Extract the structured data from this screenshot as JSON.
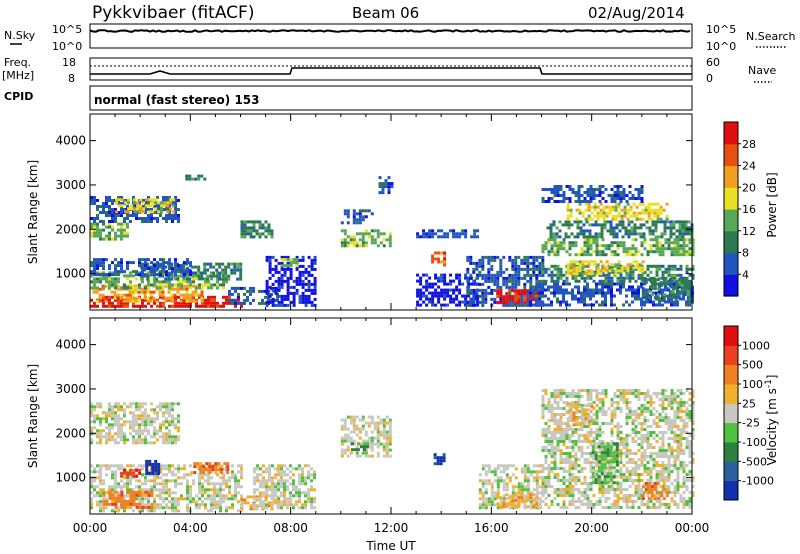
{
  "header": {
    "station": "Pykkvibaer (fitACF)",
    "beam": "Beam 06",
    "date": "02/Aug/2014"
  },
  "strips": {
    "nsky_label": "N.Sky",
    "nsearch_label": "N.Search",
    "freq_label": "Freq.",
    "freq_unit": "[MHz]",
    "nave_label": "Nave",
    "cpid_label": "CPID",
    "nsky_ticks": [
      "10^5",
      "10^0"
    ],
    "nsearch_ticks": [
      "10^5",
      "10^0"
    ],
    "freq_ticks": [
      "18",
      "8"
    ],
    "nave_ticks": [
      "60",
      "0"
    ],
    "cpid_text": "normal (fast stereo) 153"
  },
  "chart_data": [
    {
      "type": "heatmap",
      "name": "power",
      "ylabel": "Slant Range [km]",
      "xlabel": "",
      "yticks": [
        1000,
        2000,
        3000,
        4000
      ],
      "ylim": [
        180,
        4600
      ],
      "xlim": [
        0,
        24
      ],
      "colorbar": {
        "label": "Power [dB]",
        "ticks": [
          "4",
          "8",
          "12",
          "16",
          "20",
          "24",
          "28"
        ],
        "colors": [
          "#1010e0",
          "#2255c0",
          "#2e7a50",
          "#58a858",
          "#e8e020",
          "#f0a020",
          "#e85010",
          "#e01010"
        ]
      },
      "regions": [
        {
          "t0": 0.0,
          "t1": 6.0,
          "r0": 250,
          "r1": 500,
          "level": 7
        },
        {
          "t0": 0.1,
          "t1": 4.5,
          "r0": 400,
          "r1": 750,
          "level": 5
        },
        {
          "t0": 0.0,
          "t1": 5.5,
          "r0": 700,
          "r1": 1050,
          "level": 3
        },
        {
          "t0": 2.0,
          "t1": 6.0,
          "r0": 850,
          "r1": 1250,
          "level": 2
        },
        {
          "t0": 0.0,
          "t1": 4.0,
          "r0": 1000,
          "r1": 1350,
          "level": 1
        },
        {
          "t0": 0.0,
          "t1": 1.5,
          "r0": 1800,
          "r1": 2150,
          "level": 3
        },
        {
          "t0": 0.0,
          "t1": 3.5,
          "r0": 2200,
          "r1": 2750,
          "level": 1
        },
        {
          "t0": 1.0,
          "t1": 3.3,
          "r0": 2400,
          "r1": 2700,
          "level": 4
        },
        {
          "t0": 3.8,
          "t1": 4.6,
          "r0": 3100,
          "r1": 3300,
          "level": 2
        },
        {
          "t0": 5.5,
          "t1": 7.5,
          "r0": 300,
          "r1": 700,
          "level": 1
        },
        {
          "t0": 6.0,
          "t1": 7.2,
          "r0": 1800,
          "r1": 2200,
          "level": 2
        },
        {
          "t0": 7.0,
          "t1": 9.0,
          "r0": 300,
          "r1": 1400,
          "level": 0
        },
        {
          "t0": 7.6,
          "t1": 8.2,
          "r0": 1200,
          "r1": 1350,
          "level": 3
        },
        {
          "t0": 10.0,
          "t1": 12.0,
          "r0": 1600,
          "r1": 2000,
          "level": 3
        },
        {
          "t0": 10.0,
          "t1": 11.3,
          "r0": 2150,
          "r1": 2450,
          "level": 1
        },
        {
          "t0": 11.5,
          "t1": 12.0,
          "r0": 2800,
          "r1": 3200,
          "level": 1
        },
        {
          "t0": 13.0,
          "t1": 15.5,
          "r0": 1800,
          "r1": 2000,
          "level": 1
        },
        {
          "t0": 13.6,
          "t1": 14.1,
          "r0": 1200,
          "r1": 1500,
          "level": 6
        },
        {
          "t0": 13.0,
          "t1": 15.5,
          "r0": 300,
          "r1": 1000,
          "level": 0
        },
        {
          "t0": 15.0,
          "t1": 18.0,
          "r0": 300,
          "r1": 1400,
          "level": 1
        },
        {
          "t0": 16.2,
          "t1": 17.8,
          "r0": 350,
          "r1": 650,
          "level": 7
        },
        {
          "t0": 17.5,
          "t1": 24.0,
          "r0": 300,
          "r1": 800,
          "level": 1
        },
        {
          "t0": 18.0,
          "t1": 24.0,
          "r0": 800,
          "r1": 1200,
          "level": 2
        },
        {
          "t0": 19.0,
          "t1": 22.0,
          "r0": 1000,
          "r1": 1300,
          "level": 4
        },
        {
          "t0": 18.0,
          "t1": 24.0,
          "r0": 1400,
          "r1": 1800,
          "level": 3
        },
        {
          "t0": 18.2,
          "t1": 24.0,
          "r0": 1800,
          "r1": 2200,
          "level": 2
        },
        {
          "t0": 19.0,
          "t1": 23.0,
          "r0": 2200,
          "r1": 2600,
          "level": 4
        },
        {
          "t0": 18.0,
          "t1": 22.0,
          "r0": 2600,
          "r1": 3000,
          "level": 1
        },
        {
          "t0": 22.0,
          "t1": 24.0,
          "r0": 400,
          "r1": 900,
          "level": 2
        }
      ]
    },
    {
      "type": "heatmap",
      "name": "velocity",
      "ylabel": "Slant Range [km]",
      "xlabel": "Time UT",
      "xticks": [
        "00:00",
        "04:00",
        "08:00",
        "12:00",
        "16:00",
        "20:00",
        "00:00"
      ],
      "yticks": [
        1000,
        2000,
        3000,
        4000
      ],
      "ylim": [
        180,
        4600
      ],
      "xlim": [
        0,
        24
      ],
      "colorbar": {
        "label": "Velocity [m s^-1]",
        "ticks": [
          "1000",
          "500",
          "100",
          "25",
          "-25",
          "-100",
          "-500",
          "-1000"
        ],
        "colors": [
          "#1030b0",
          "#2a5fa0",
          "#2d8040",
          "#50c040",
          "#c8c8c0",
          "#f0b030",
          "#f08020",
          "#e84020",
          "#e01010"
        ]
      },
      "regions": [
        {
          "t0": 0.0,
          "t1": 6.0,
          "r0": 250,
          "r1": 1300,
          "level": 4
        },
        {
          "t0": 0.5,
          "t1": 2.5,
          "r0": 300,
          "r1": 700,
          "level": 6
        },
        {
          "t0": 4.0,
          "t1": 5.5,
          "r0": 1100,
          "r1": 1350,
          "level": 6
        },
        {
          "t0": 1.2,
          "t1": 2.0,
          "r0": 1000,
          "r1": 1200,
          "level": 7
        },
        {
          "t0": 0.0,
          "t1": 3.5,
          "r0": 1800,
          "r1": 2700,
          "level": 4
        },
        {
          "t0": 2.2,
          "t1": 2.7,
          "r0": 1100,
          "r1": 1400,
          "level": 0
        },
        {
          "t0": 6.0,
          "t1": 7.5,
          "r0": 300,
          "r1": 600,
          "level": 5
        },
        {
          "t0": 6.5,
          "t1": 9.0,
          "r0": 300,
          "r1": 1300,
          "level": 4
        },
        {
          "t0": 10.0,
          "t1": 12.0,
          "r0": 1500,
          "r1": 2400,
          "level": 4
        },
        {
          "t0": 10.4,
          "t1": 11.0,
          "r0": 1600,
          "r1": 1800,
          "level": 2
        },
        {
          "t0": 13.7,
          "t1": 14.1,
          "r0": 1300,
          "r1": 1550,
          "level": 0
        },
        {
          "t0": 15.5,
          "t1": 18.0,
          "r0": 300,
          "r1": 1300,
          "level": 4
        },
        {
          "t0": 16.2,
          "t1": 17.8,
          "r0": 350,
          "r1": 650,
          "level": 5
        },
        {
          "t0": 18.0,
          "t1": 24.0,
          "r0": 300,
          "r1": 3000,
          "level": 4
        },
        {
          "t0": 19.0,
          "t1": 20.0,
          "r0": 2200,
          "r1": 2700,
          "level": 5
        },
        {
          "t0": 20.0,
          "t1": 21.0,
          "r0": 900,
          "r1": 1800,
          "level": 3
        },
        {
          "t0": 22.0,
          "t1": 23.0,
          "r0": 500,
          "r1": 900,
          "level": 6
        }
      ]
    }
  ],
  "colors": {
    "background": "#ffffff",
    "axis": "#000000"
  }
}
